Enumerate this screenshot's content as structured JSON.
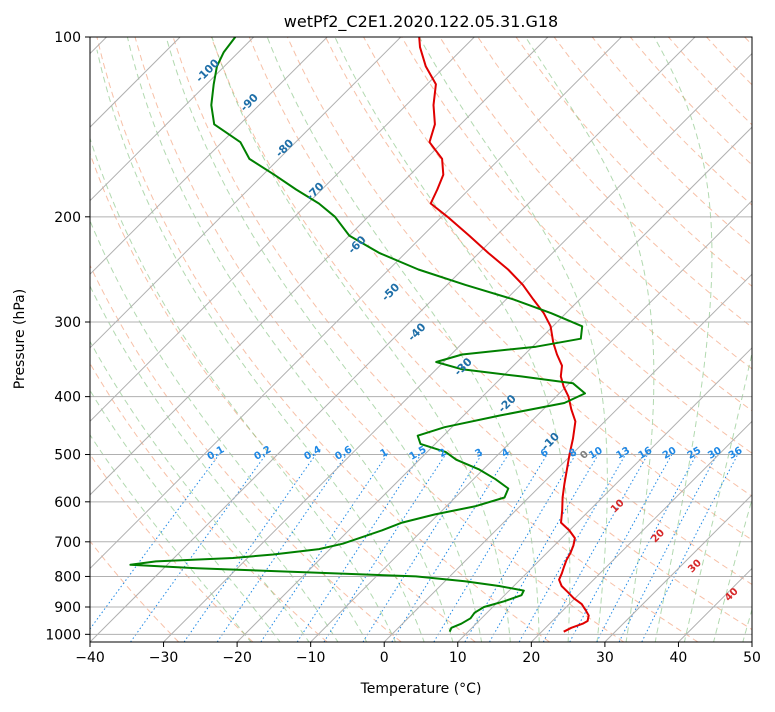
{
  "chart_data": {
    "type": "line",
    "title": "wetPf2_C2E1.2020.122.05.31.G18",
    "xlabel": "Temperature (°C)",
    "ylabel": "Pressure (hPa)",
    "xlim": [
      -40,
      50
    ],
    "ylim": [
      1030,
      100
    ],
    "y_scale": "log",
    "x_ticks": [
      -40,
      -30,
      -20,
      -10,
      0,
      10,
      20,
      30,
      40,
      50
    ],
    "y_ticks": [
      100,
      200,
      300,
      400,
      500,
      600,
      700,
      800,
      900,
      1000
    ],
    "skew": true,
    "grid": true,
    "colors": {
      "temperature": "#e00000",
      "dewpoint": "#008000",
      "dry_adiabat": "#f4a582",
      "moist_adiabat": "#7fbf7b",
      "mixing_ratio": "#1e88e5",
      "isotherm_label": "#1f6fa8",
      "moist_label": "#d62728",
      "grid": "#b0b0b0"
    },
    "series": [
      {
        "key": "temperature",
        "points": [
          [
            23.0,
            990
          ],
          [
            23.5,
            975
          ],
          [
            24.5,
            960
          ],
          [
            24.8,
            950
          ],
          [
            24.2,
            930
          ],
          [
            23.0,
            910
          ],
          [
            21.7,
            890
          ],
          [
            19.8,
            870
          ],
          [
            18.2,
            850
          ],
          [
            16.5,
            830
          ],
          [
            15.3,
            810
          ],
          [
            14.8,
            790
          ],
          [
            14.2,
            770
          ],
          [
            13.6,
            750
          ],
          [
            13.2,
            730
          ],
          [
            12.6,
            710
          ],
          [
            11.8,
            690
          ],
          [
            10.0,
            670
          ],
          [
            7.8,
            650
          ],
          [
            6.3,
            620
          ],
          [
            4.6,
            590
          ],
          [
            3.0,
            560
          ],
          [
            1.4,
            530
          ],
          [
            -0.3,
            500
          ],
          [
            -2.0,
            470
          ],
          [
            -4.0,
            440
          ],
          [
            -6.2,
            420
          ],
          [
            -8.3,
            400
          ],
          [
            -10.3,
            385
          ],
          [
            -12.1,
            370
          ],
          [
            -13.4,
            355
          ],
          [
            -15.6,
            340
          ],
          [
            -17.7,
            325
          ],
          [
            -20.3,
            305
          ],
          [
            -23.0,
            290
          ],
          [
            -26.3,
            275
          ],
          [
            -29.7,
            260
          ],
          [
            -33.8,
            245
          ],
          [
            -38.7,
            230
          ],
          [
            -43.7,
            215
          ],
          [
            -49.2,
            200
          ],
          [
            -53.3,
            190
          ],
          [
            -54.3,
            180
          ],
          [
            -55.5,
            170
          ],
          [
            -57.8,
            160
          ],
          [
            -61.8,
            150
          ],
          [
            -63.5,
            140
          ],
          [
            -66.3,
            130
          ],
          [
            -68.8,
            120
          ],
          [
            -72.6,
            112
          ],
          [
            -76.0,
            104
          ],
          [
            -77.5,
            100
          ]
        ]
      },
      {
        "key": "dewpoint",
        "points": [
          [
            7.5,
            990
          ],
          [
            7.2,
            975
          ],
          [
            8.0,
            960
          ],
          [
            8.5,
            940
          ],
          [
            8.3,
            920
          ],
          [
            8.8,
            900
          ],
          [
            10.8,
            880
          ],
          [
            12.3,
            860
          ],
          [
            12.0,
            845
          ],
          [
            8.0,
            830
          ],
          [
            2.7,
            815
          ],
          [
            -4.6,
            800
          ],
          [
            -16.5,
            790
          ],
          [
            -35.5,
            775
          ],
          [
            -45.0,
            765
          ],
          [
            -42.0,
            755
          ],
          [
            -32.0,
            745
          ],
          [
            -27.0,
            735
          ],
          [
            -21.5,
            720
          ],
          [
            -19.0,
            705
          ],
          [
            -17.5,
            690
          ],
          [
            -15.5,
            670
          ],
          [
            -13.8,
            650
          ],
          [
            -10.5,
            630
          ],
          [
            -6.0,
            610
          ],
          [
            -3.3,
            590
          ],
          [
            -4.0,
            570
          ],
          [
            -7.0,
            550
          ],
          [
            -10.5,
            530
          ],
          [
            -15.0,
            510
          ],
          [
            -17.5,
            495
          ],
          [
            -22.0,
            480
          ],
          [
            -23.5,
            465
          ],
          [
            -21.0,
            450
          ],
          [
            -15.0,
            430
          ],
          [
            -8.0,
            410
          ],
          [
            -6.5,
            395
          ],
          [
            -9.5,
            380
          ],
          [
            -17.5,
            370
          ],
          [
            -26.5,
            360
          ],
          [
            -31.0,
            350
          ],
          [
            -28.5,
            340
          ],
          [
            -19.5,
            330
          ],
          [
            -14.5,
            320
          ],
          [
            -16.0,
            305
          ],
          [
            -22.0,
            290
          ],
          [
            -29.0,
            275
          ],
          [
            -37.5,
            260
          ],
          [
            -46.0,
            245
          ],
          [
            -53.5,
            230
          ],
          [
            -60.0,
            215
          ],
          [
            -64.5,
            200
          ],
          [
            -68.5,
            190
          ],
          [
            -73.5,
            180
          ],
          [
            -78.5,
            170
          ],
          [
            -84.0,
            160
          ],
          [
            -87.5,
            150
          ],
          [
            -93.5,
            140
          ],
          [
            -96.5,
            130
          ],
          [
            -99.0,
            120
          ],
          [
            -101.0,
            112
          ],
          [
            -102.0,
            106
          ],
          [
            -102.5,
            100
          ]
        ]
      }
    ],
    "isotherm_labels": [
      "-100",
      "-90",
      "-80",
      "-70",
      "-60",
      "-50",
      "-40",
      "-30",
      "-20",
      "-10"
    ],
    "mixing_ratio_labels": [
      "0.1",
      "0.2",
      "0.4",
      "0.6",
      "1",
      "1.5",
      "2",
      "3",
      "4",
      "6",
      "8",
      "10",
      "13",
      "16",
      "20",
      "25",
      "30",
      "36"
    ],
    "moist_adiabat_labels": [
      "0",
      "10",
      "20",
      "30",
      "40"
    ]
  }
}
